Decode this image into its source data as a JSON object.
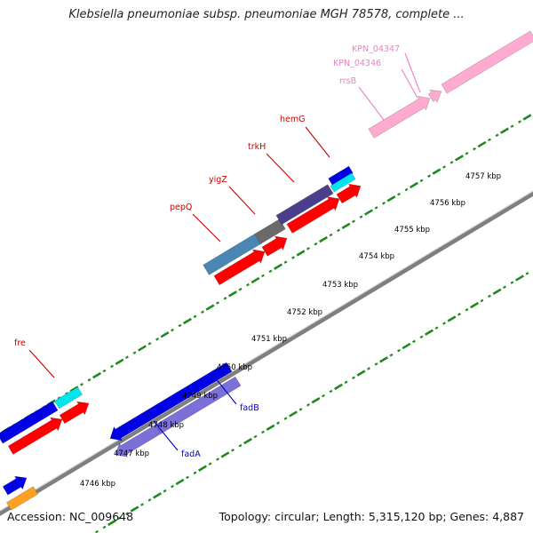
{
  "title": "Klebsiella pneumoniae subsp. pneumoniae MGH 78578, complete ...",
  "footer": {
    "accession": "Accession: NC_009648",
    "topology": "Topology: circular; Length: 5,315,120 bp; Genes: 4,887"
  },
  "colors": {
    "backbone": "#7f7f7f",
    "tick": "#1e8a1e",
    "red_label": "#cc0000",
    "blue_label": "#0000cc",
    "pink_label": "#f080c0",
    "cds_blue": "#0000e6",
    "cds_red": "#ff0000",
    "cds_cyan": "#00e5ee",
    "cds_slate": "#4a3f8c",
    "cds_gray": "#6a6a6a",
    "cds_steel": "#4a86b4",
    "cds_lavender": "#7b6fd8",
    "rrna_pink": "#ffaad0",
    "cds_orange": "#ffa020"
  },
  "ticks": [
    {
      "label": "4746 kbp"
    },
    {
      "label": "4747 kbp"
    },
    {
      "label": "4748 kbp"
    },
    {
      "label": "4749 kbp"
    },
    {
      "label": "4750 kbp"
    },
    {
      "label": "4751 kbp"
    },
    {
      "label": "4752 kbp"
    },
    {
      "label": "4753 kbp"
    },
    {
      "label": "4754 kbp"
    },
    {
      "label": "4755 kbp"
    },
    {
      "label": "4756 kbp"
    },
    {
      "label": "4757 kbp"
    }
  ],
  "gene_labels": [
    {
      "name": "fre",
      "color": "red_label"
    },
    {
      "name": "pepQ",
      "color": "red_label"
    },
    {
      "name": "yigZ",
      "color": "red_label"
    },
    {
      "name": "trkH",
      "color": "red_label"
    },
    {
      "name": "hemG",
      "color": "red_label"
    },
    {
      "name": "rrsB",
      "color": "pink_label"
    },
    {
      "name": "KPN_04346",
      "color": "pink_label"
    },
    {
      "name": "KPN_04347",
      "color": "pink_label"
    },
    {
      "name": "fadB",
      "color": "blue_label"
    },
    {
      "name": "fadA",
      "color": "blue_label"
    }
  ]
}
